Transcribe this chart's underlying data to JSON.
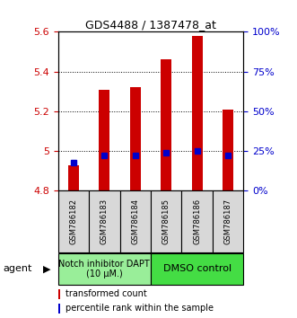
{
  "title": "GDS4488 / 1387478_at",
  "samples": [
    "GSM786182",
    "GSM786183",
    "GSM786184",
    "GSM786185",
    "GSM786186",
    "GSM786187"
  ],
  "bar_values": [
    4.93,
    5.31,
    5.32,
    5.46,
    5.58,
    5.21
  ],
  "percentile_values": [
    18,
    22,
    22,
    24,
    25,
    22
  ],
  "y_min": 4.8,
  "y_max": 5.6,
  "y_ticks": [
    4.8,
    5.0,
    5.2,
    5.4,
    5.6
  ],
  "y_ticks_right": [
    0,
    25,
    50,
    75,
    100
  ],
  "bar_color": "#cc0000",
  "dot_color": "#0000cc",
  "bar_bottom": 4.8,
  "group0_label": "Notch inhibitor DAPT\n(10 μM.)",
  "group0_color": "#99ee99",
  "group1_label": "DMSO control",
  "group1_color": "#44dd44",
  "agent_label": "agent",
  "legend_bar_label": "transformed count",
  "legend_dot_label": "percentile rank within the sample",
  "sample_box_color": "#d8d8d8",
  "plot_bg": "#ffffff",
  "title_fontsize": 9,
  "tick_fontsize": 8,
  "sample_fontsize": 6,
  "group_fontsize": 7,
  "legend_fontsize": 7,
  "agent_fontsize": 8
}
